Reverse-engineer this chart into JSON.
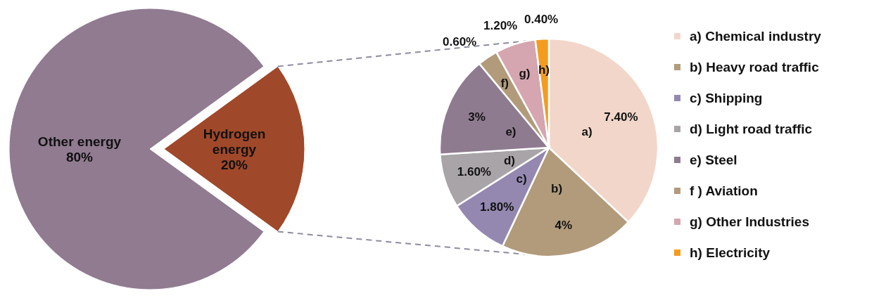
{
  "chart_data": [
    {
      "type": "pie",
      "categories": [
        "Other energy",
        "Hydrogen energy"
      ],
      "values": [
        80,
        20
      ],
      "colors": [
        "#907b90",
        "#a0482a"
      ],
      "value_labels": [
        "80%",
        "20%"
      ]
    },
    {
      "type": "pie",
      "categories": [
        "a) Chemical industry",
        "b) Heavy road traffic",
        "c) Shipping",
        "d) Light road traffic",
        "e) Steel",
        "f ) Aviation",
        "g) Other Industries",
        "h) Electricity"
      ],
      "values": [
        7.4,
        4,
        1.8,
        1.6,
        3,
        0.6,
        1.2,
        0.4
      ],
      "colors": [
        "#f2d6c9",
        "#b19b7b",
        "#9488b0",
        "#a9a4a7",
        "#8f7b8f",
        "#b19b7b",
        "#d5a5b0",
        "#f39c1f"
      ],
      "value_labels": [
        "7.40%",
        "4%",
        "1.80%",
        "1.60%",
        "3%",
        "0.60%",
        "1.20%",
        "0.40%"
      ],
      "annotations": [
        "a)",
        "b)",
        "c)",
        "d)",
        "e)",
        "f)",
        "g)",
        "h)"
      ],
      "legend": "right"
    }
  ]
}
